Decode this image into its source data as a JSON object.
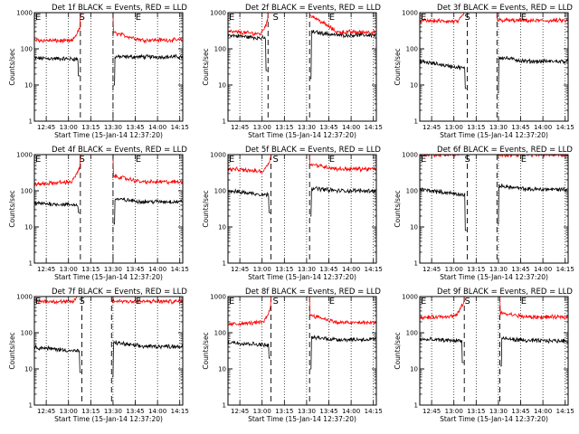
{
  "figure": {
    "axis_ylabel": "Counts/sec",
    "axis_xlabel": "Start Time (15-Jan-14 12:37:20)",
    "x_tick_labels": [
      "12:45",
      "13:00",
      "13:15",
      "13:30",
      "13:45",
      "14:00",
      "14:15"
    ],
    "y_tick_labels": [
      "1",
      "10",
      "100",
      "1000"
    ],
    "marker_letters": [
      "E",
      "S",
      "E"
    ],
    "colors": {
      "events": "#000000",
      "lld": "#ff0000"
    }
  },
  "chart_data": [
    {
      "type": "line",
      "title": "Det 1f BLACK = Events, RED = LLD",
      "xlabel": "Start Time (15-Jan-14 12:37:20)",
      "ylabel": "Counts/sec",
      "x_range": [
        "12:37",
        "14:17"
      ],
      "ylim": [
        1,
        1000
      ],
      "yscale": "log",
      "markers": [
        {
          "label": "E",
          "time": "12:37"
        },
        {
          "label": "S",
          "time": "13:09"
        },
        {
          "label": "E",
          "time": "13:47"
        }
      ],
      "saa_start": "13:08",
      "saa_end": "13:30",
      "series": [
        {
          "name": "Events",
          "color": "#000000",
          "base": 55,
          "end": 52,
          "post_level": 60,
          "post_end": 60,
          "dip_pre": 18,
          "dip_post": 10
        },
        {
          "name": "LLD",
          "color": "#ff0000",
          "base": 175,
          "end": 160,
          "post_level": 280,
          "post_end": 175
        }
      ]
    },
    {
      "type": "line",
      "title": "Det 2f BLACK = Events, RED = LLD",
      "xlabel": "Start Time (15-Jan-14 12:37:20)",
      "ylabel": "Counts/sec",
      "x_range": [
        "12:37",
        "14:17"
      ],
      "ylim": [
        1,
        1000
      ],
      "yscale": "log",
      "markers": [
        {
          "label": "E",
          "time": "12:37"
        },
        {
          "label": "S",
          "time": "13:09"
        },
        {
          "label": "E",
          "time": "13:47"
        }
      ],
      "saa_start": "13:04",
      "saa_end": "13:32",
      "series": [
        {
          "name": "Events",
          "color": "#000000",
          "base": 240,
          "end": 190,
          "post_level": 300,
          "post_end": 240,
          "dip_pre": 25,
          "dip_post": 15
        },
        {
          "name": "LLD",
          "color": "#ff0000",
          "base": 300,
          "end": 250,
          "post_level": 900,
          "post_end": 290
        }
      ]
    },
    {
      "type": "line",
      "title": "Det 3f BLACK = Events, RED = LLD",
      "xlabel": "Start Time (15-Jan-14 12:37:20)",
      "ylabel": "Counts/sec",
      "x_range": [
        "12:37",
        "14:17"
      ],
      "ylim": [
        1,
        1000
      ],
      "yscale": "log",
      "markers": [
        {
          "label": "E",
          "time": "12:37"
        },
        {
          "label": "S",
          "time": "13:09"
        },
        {
          "label": "E",
          "time": "13:47"
        }
      ],
      "saa_start": "13:09",
      "saa_end": "13:29",
      "series": [
        {
          "name": "Events",
          "color": "#000000",
          "base": 45,
          "end": 28,
          "post_level": 60,
          "post_end": 45,
          "dip_pre": 8,
          "dip_post": 6
        },
        {
          "name": "LLD",
          "color": "#ff0000",
          "base": 600,
          "end": 560,
          "post_level": 620,
          "post_end": 600
        }
      ]
    },
    {
      "type": "line",
      "title": "Det 4f BLACK = Events, RED = LLD",
      "xlabel": "Start Time (15-Jan-14 12:37:20)",
      "ylabel": "Counts/sec",
      "x_range": [
        "12:37",
        "14:17"
      ],
      "ylim": [
        1,
        1000
      ],
      "yscale": "log",
      "markers": [
        {
          "label": "E",
          "time": "12:37"
        },
        {
          "label": "S",
          "time": "13:09"
        },
        {
          "label": "E",
          "time": "13:47"
        }
      ],
      "saa_start": "13:08",
      "saa_end": "13:30",
      "series": [
        {
          "name": "Events",
          "color": "#000000",
          "base": 45,
          "end": 40,
          "post_level": 60,
          "post_end": 50,
          "dip_pre": 25,
          "dip_post": 12
        },
        {
          "name": "LLD",
          "color": "#ff0000",
          "base": 150,
          "end": 185,
          "post_level": 260,
          "post_end": 175
        }
      ]
    },
    {
      "type": "line",
      "title": "Det 5f BLACK = Events, RED = LLD",
      "xlabel": "Start Time (15-Jan-14 12:37:20)",
      "ylabel": "Counts/sec",
      "x_range": [
        "12:37",
        "14:17"
      ],
      "ylim": [
        1,
        1000
      ],
      "yscale": "log",
      "markers": [
        {
          "label": "E",
          "time": "12:37"
        },
        {
          "label": "S",
          "time": "13:09"
        },
        {
          "label": "E",
          "time": "13:47"
        }
      ],
      "saa_start": "13:06",
      "saa_end": "13:32",
      "series": [
        {
          "name": "Events",
          "color": "#000000",
          "base": 100,
          "end": 75,
          "post_level": 120,
          "post_end": 100,
          "dip_pre": 25,
          "dip_post": 20
        },
        {
          "name": "LLD",
          "color": "#ff0000",
          "base": 400,
          "end": 330,
          "post_level": 550,
          "post_end": 400
        }
      ]
    },
    {
      "type": "line",
      "title": "Det 6f BLACK = Events, RED = LLD",
      "xlabel": "Start Time (15-Jan-14 12:37:20)",
      "ylabel": "Counts/sec",
      "x_range": [
        "12:37",
        "14:17"
      ],
      "ylim": [
        1,
        1000
      ],
      "yscale": "log",
      "markers": [
        {
          "label": "E",
          "time": "12:37"
        },
        {
          "label": "S",
          "time": "13:09"
        },
        {
          "label": "E",
          "time": "13:47"
        }
      ],
      "saa_start": "13:09",
      "saa_end": "13:29",
      "series": [
        {
          "name": "Events",
          "color": "#000000",
          "base": 110,
          "end": 75,
          "post_level": 140,
          "post_end": 110,
          "dip_pre": 8,
          "dip_post": 12
        },
        {
          "name": "LLD",
          "color": "#ff0000",
          "base": 1000,
          "end": 1000,
          "post_level": 1000,
          "post_end": 1000
        }
      ]
    },
    {
      "type": "line",
      "title": "Det 7f BLACK = Events, RED = LLD",
      "xlabel": "Start Time (15-Jan-14 12:37:20)",
      "ylabel": "Counts/sec",
      "x_range": [
        "12:37",
        "14:17"
      ],
      "ylim": [
        1,
        1000
      ],
      "yscale": "log",
      "markers": [
        {
          "label": "E",
          "time": "12:37"
        },
        {
          "label": "S",
          "time": "13:09"
        },
        {
          "label": "E",
          "time": "13:47"
        }
      ],
      "saa_start": "13:09",
      "saa_end": "13:29",
      "series": [
        {
          "name": "Events",
          "color": "#000000",
          "base": 40,
          "end": 30,
          "post_level": 55,
          "post_end": 42,
          "dip_pre": 8,
          "dip_post": 6
        },
        {
          "name": "LLD",
          "color": "#ff0000",
          "base": 750,
          "end": 700,
          "post_level": 760,
          "post_end": 730
        }
      ]
    },
    {
      "type": "line",
      "title": "Det 8f BLACK = Events, RED = LLD",
      "xlabel": "Start Time (15-Jan-14 12:37:20)",
      "ylabel": "Counts/sec",
      "x_range": [
        "12:37",
        "14:17"
      ],
      "ylim": [
        1,
        1000
      ],
      "yscale": "log",
      "markers": [
        {
          "label": "E",
          "time": "12:37"
        },
        {
          "label": "S",
          "time": "13:09"
        },
        {
          "label": "E",
          "time": "13:47"
        }
      ],
      "saa_start": "13:06",
      "saa_end": "13:32",
      "series": [
        {
          "name": "Events",
          "color": "#000000",
          "base": 55,
          "end": 45,
          "post_level": 75,
          "post_end": 65,
          "dip_pre": 20,
          "dip_post": 10
        },
        {
          "name": "LLD",
          "color": "#ff0000",
          "base": 170,
          "end": 200,
          "post_level": 320,
          "post_end": 190
        }
      ]
    },
    {
      "type": "line",
      "title": "Det 9f BLACK = Events, RED = LLD",
      "xlabel": "Start Time (15-Jan-14 12:37:20)",
      "ylabel": "Counts/sec",
      "x_range": [
        "12:37",
        "14:17"
      ],
      "ylim": [
        1,
        1000
      ],
      "yscale": "log",
      "markers": [
        {
          "label": "E",
          "time": "12:37"
        },
        {
          "label": "S",
          "time": "13:09"
        },
        {
          "label": "E",
          "time": "13:47"
        }
      ],
      "saa_start": "13:07",
      "saa_end": "13:31",
      "series": [
        {
          "name": "Events",
          "color": "#000000",
          "base": 65,
          "end": 60,
          "post_level": 70,
          "post_end": 60,
          "dip_pre": 15,
          "dip_post": 12
        },
        {
          "name": "LLD",
          "color": "#ff0000",
          "base": 260,
          "end": 300,
          "post_level": 350,
          "post_end": 270
        }
      ]
    }
  ]
}
